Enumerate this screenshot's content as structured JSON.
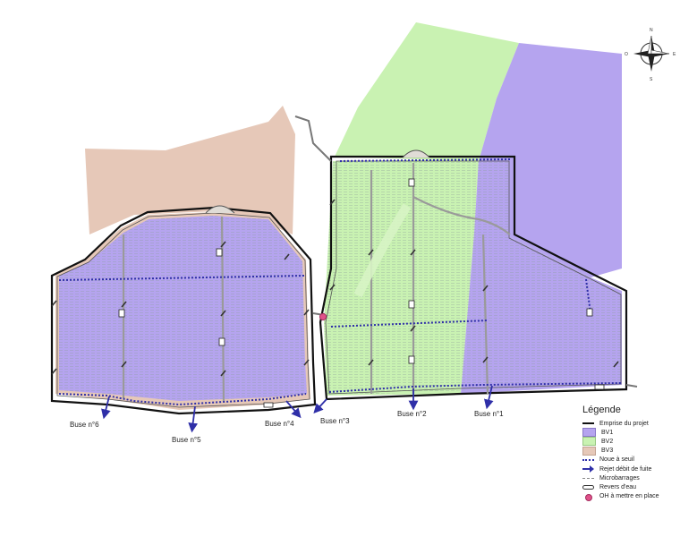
{
  "map": {
    "outlets": [
      {
        "id": "buse1",
        "label": "Buse n°1"
      },
      {
        "id": "buse2",
        "label": "Buse n°2"
      },
      {
        "id": "buse3",
        "label": "Buse n°3"
      },
      {
        "id": "buse4",
        "label": "Buse n°4"
      },
      {
        "id": "buse5",
        "label": "Buse n°5"
      },
      {
        "id": "buse6",
        "label": "Buse n°6"
      }
    ],
    "compass": {
      "n": "N",
      "s": "S",
      "e": "E",
      "o": "O"
    },
    "colors": {
      "bv1": "#b5a4ef",
      "bv2": "#c9f2b2",
      "bv3": "#e6c8b8",
      "noue": "#2f2fa8",
      "oh": "#e0528a",
      "emprise": "#111111"
    }
  },
  "legend": {
    "title": "Légende",
    "items": [
      {
        "label": "Emprise du projet",
        "swatch": "line"
      },
      {
        "label": "BV1",
        "swatch": "fill",
        "color": "#b5a4ef"
      },
      {
        "label": "BV2",
        "swatch": "fill",
        "color": "#c9f2b2"
      },
      {
        "label": "BV3",
        "swatch": "fill",
        "color": "#e6c8b8"
      },
      {
        "label": "Noue à seuil",
        "swatch": "dot"
      },
      {
        "label": "Rejet débit de fuite",
        "swatch": "arrow"
      },
      {
        "label": "Microbarrages",
        "swatch": "thin"
      },
      {
        "label": "Revers d'eau",
        "swatch": "revers"
      },
      {
        "label": "OH à mettre en place",
        "swatch": "circle"
      }
    ]
  }
}
